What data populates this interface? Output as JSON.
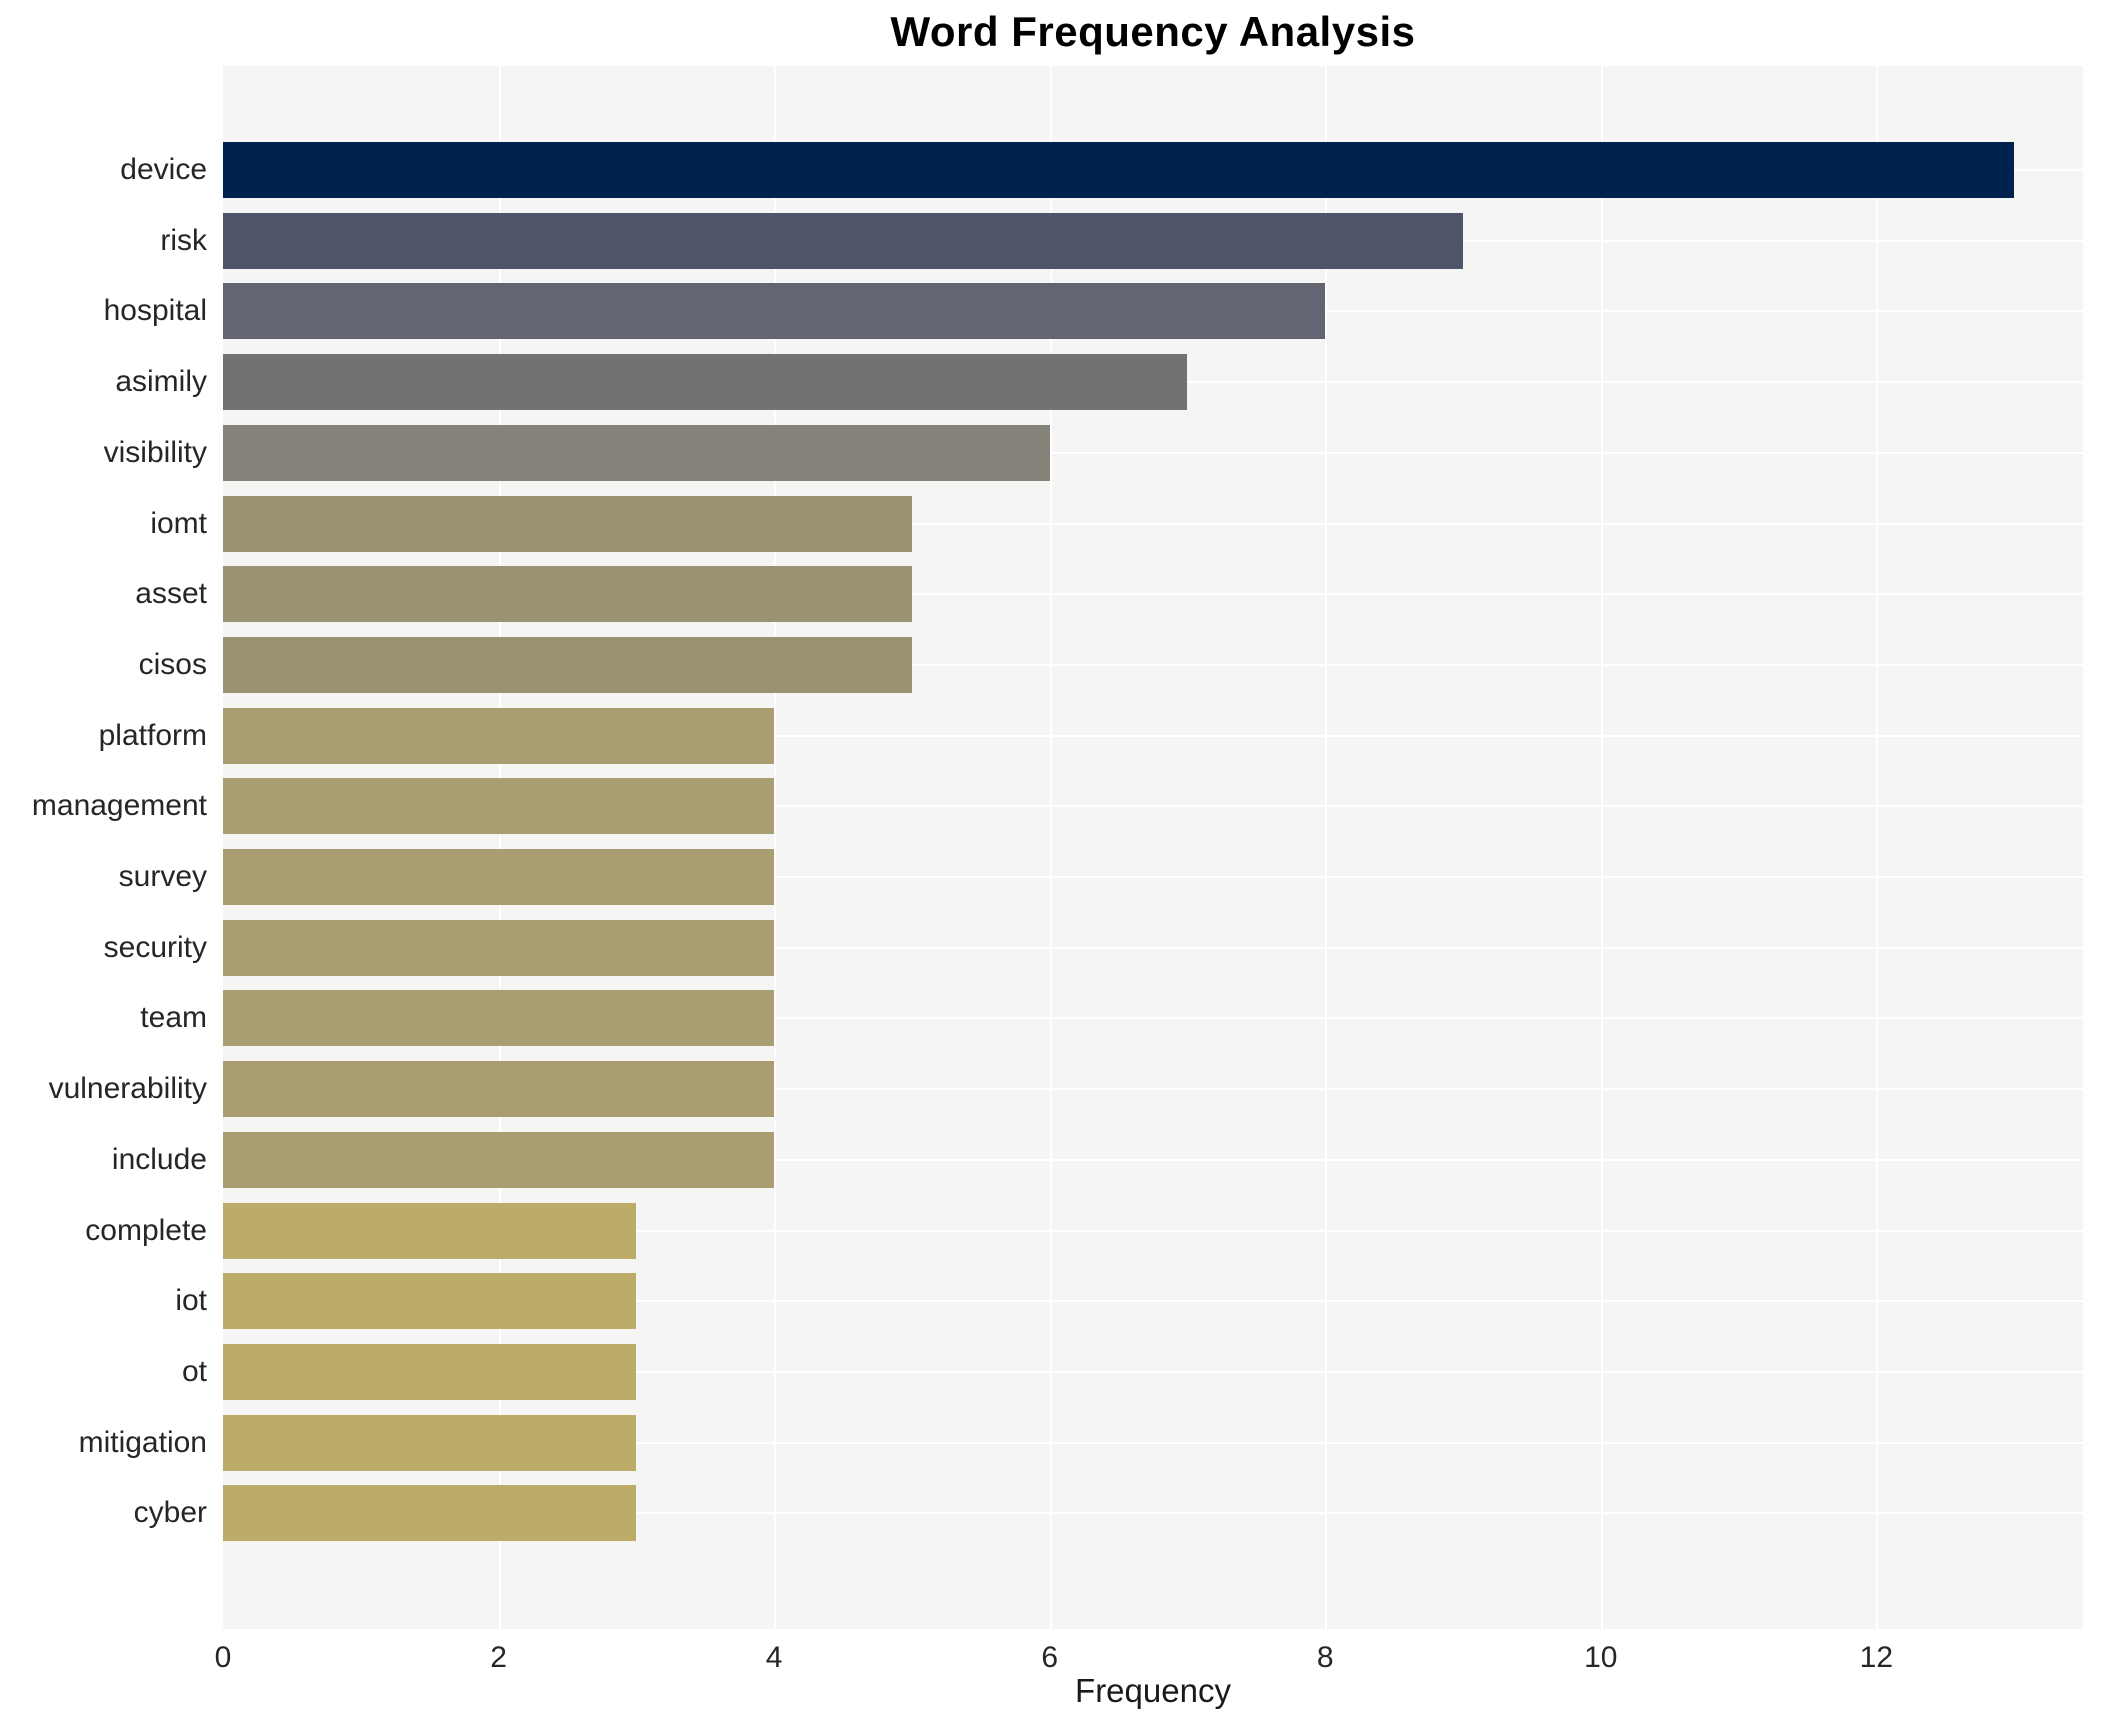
{
  "chart_data": {
    "type": "bar",
    "orientation": "horizontal",
    "title": "Word Frequency Analysis",
    "xlabel": "Frequency",
    "ylabel": "",
    "xlim": [
      0,
      13.5
    ],
    "x_ticks": [
      0,
      2,
      4,
      6,
      8,
      10,
      12
    ],
    "grid": true,
    "legend": "none",
    "plot_background": "#f5f5f3",
    "grid_color": "#ffffff",
    "categories": [
      "device",
      "risk",
      "hospital",
      "asimily",
      "visibility",
      "iomt",
      "asset",
      "cisos",
      "platform",
      "management",
      "survey",
      "security",
      "team",
      "vulnerability",
      "include",
      "complete",
      "iot",
      "ot",
      "mitigation",
      "cyber"
    ],
    "values": [
      13,
      9,
      8,
      7,
      6,
      5,
      5,
      5,
      4,
      4,
      4,
      4,
      4,
      4,
      4,
      3,
      3,
      3,
      3,
      3
    ],
    "bar_colors": [
      "#00224e",
      "#4e5469",
      "#636672",
      "#727273",
      "#85827a",
      "#999273",
      "#999273",
      "#999273",
      "#a89e72",
      "#a89e72",
      "#a89e72",
      "#a89e72",
      "#a89e72",
      "#a89e72",
      "#a89e72",
      "#bcac6a",
      "#bcac6a",
      "#bcac6a",
      "#bcac6a",
      "#bcac6a"
    ]
  }
}
